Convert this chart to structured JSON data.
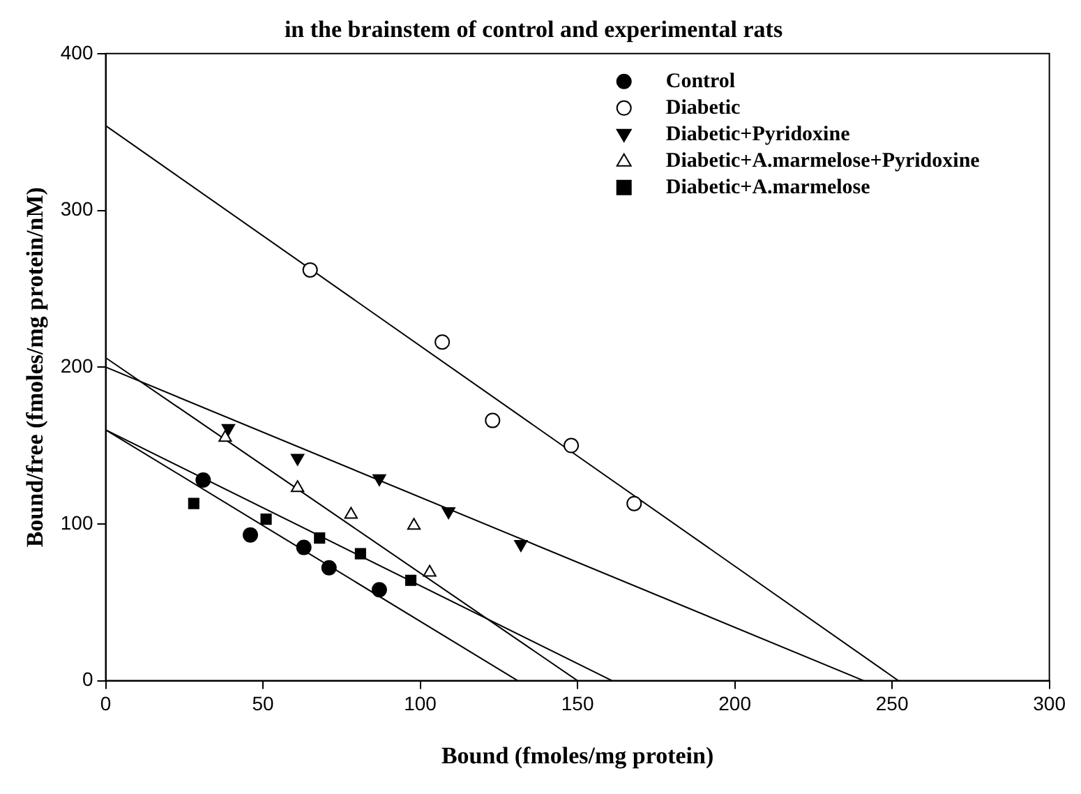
{
  "chart_data": {
    "type": "scatter",
    "title": "in the brainstem of control and experimental rats",
    "xlabel": "Bound (fmoles/mg protein)",
    "ylabel": "Bound/free (fmoles/mg protein/nM)",
    "xlim": [
      0,
      300
    ],
    "ylim": [
      0,
      400
    ],
    "xticks": [
      0,
      50,
      100,
      150,
      200,
      250,
      300
    ],
    "yticks": [
      0,
      100,
      200,
      300,
      400
    ],
    "grid": false,
    "legend": "top right",
    "series": [
      {
        "name": "Control",
        "marker": "circle",
        "color": "#000000",
        "x": [
          31,
          46,
          63,
          71,
          87
        ],
        "values": [
          128,
          93,
          85,
          72,
          58
        ]
      },
      {
        "name": "Diabetic",
        "marker": "circle",
        "color": "#ffffff",
        "x": [
          65,
          107,
          123,
          148,
          168
        ],
        "values": [
          262,
          216,
          166,
          150,
          113
        ]
      },
      {
        "name": "Diabetic+Pyridoxine",
        "marker": "triangle-down",
        "color": "#000000",
        "x": [
          39,
          61,
          87,
          109,
          132
        ],
        "values": [
          161,
          142,
          129,
          108,
          87
        ]
      },
      {
        "name": "Diabetic+A.marmelose+Pyridoxine",
        "marker": "triangle",
        "color": "#ffffff",
        "x": [
          38,
          61,
          78,
          98,
          103
        ],
        "values": [
          155,
          123,
          106,
          99,
          69
        ]
      },
      {
        "name": "Diabetic+A.marmelose",
        "marker": "square",
        "color": "#000000",
        "x": [
          28,
          51,
          68,
          81,
          97
        ],
        "values": [
          113,
          103,
          91,
          81,
          64
        ]
      },
      {
        "type": "line",
        "marker": "none",
        "color": "#000000",
        "x": [
          0,
          131
        ],
        "values": [
          160,
          0
        ]
      },
      {
        "type": "line",
        "marker": "none",
        "color": "#000000",
        "x": [
          0,
          252
        ],
        "values": [
          354,
          0
        ]
      },
      {
        "type": "line",
        "marker": "none",
        "color": "#000000",
        "x": [
          0,
          241
        ],
        "values": [
          200,
          0
        ]
      },
      {
        "type": "line",
        "marker": "none",
        "color": "#000000",
        "x": [
          0,
          150
        ],
        "values": [
          206,
          0
        ]
      },
      {
        "type": "line",
        "marker": "none",
        "color": "#000000",
        "x": [
          0,
          161
        ],
        "values": [
          160,
          0
        ]
      }
    ]
  }
}
